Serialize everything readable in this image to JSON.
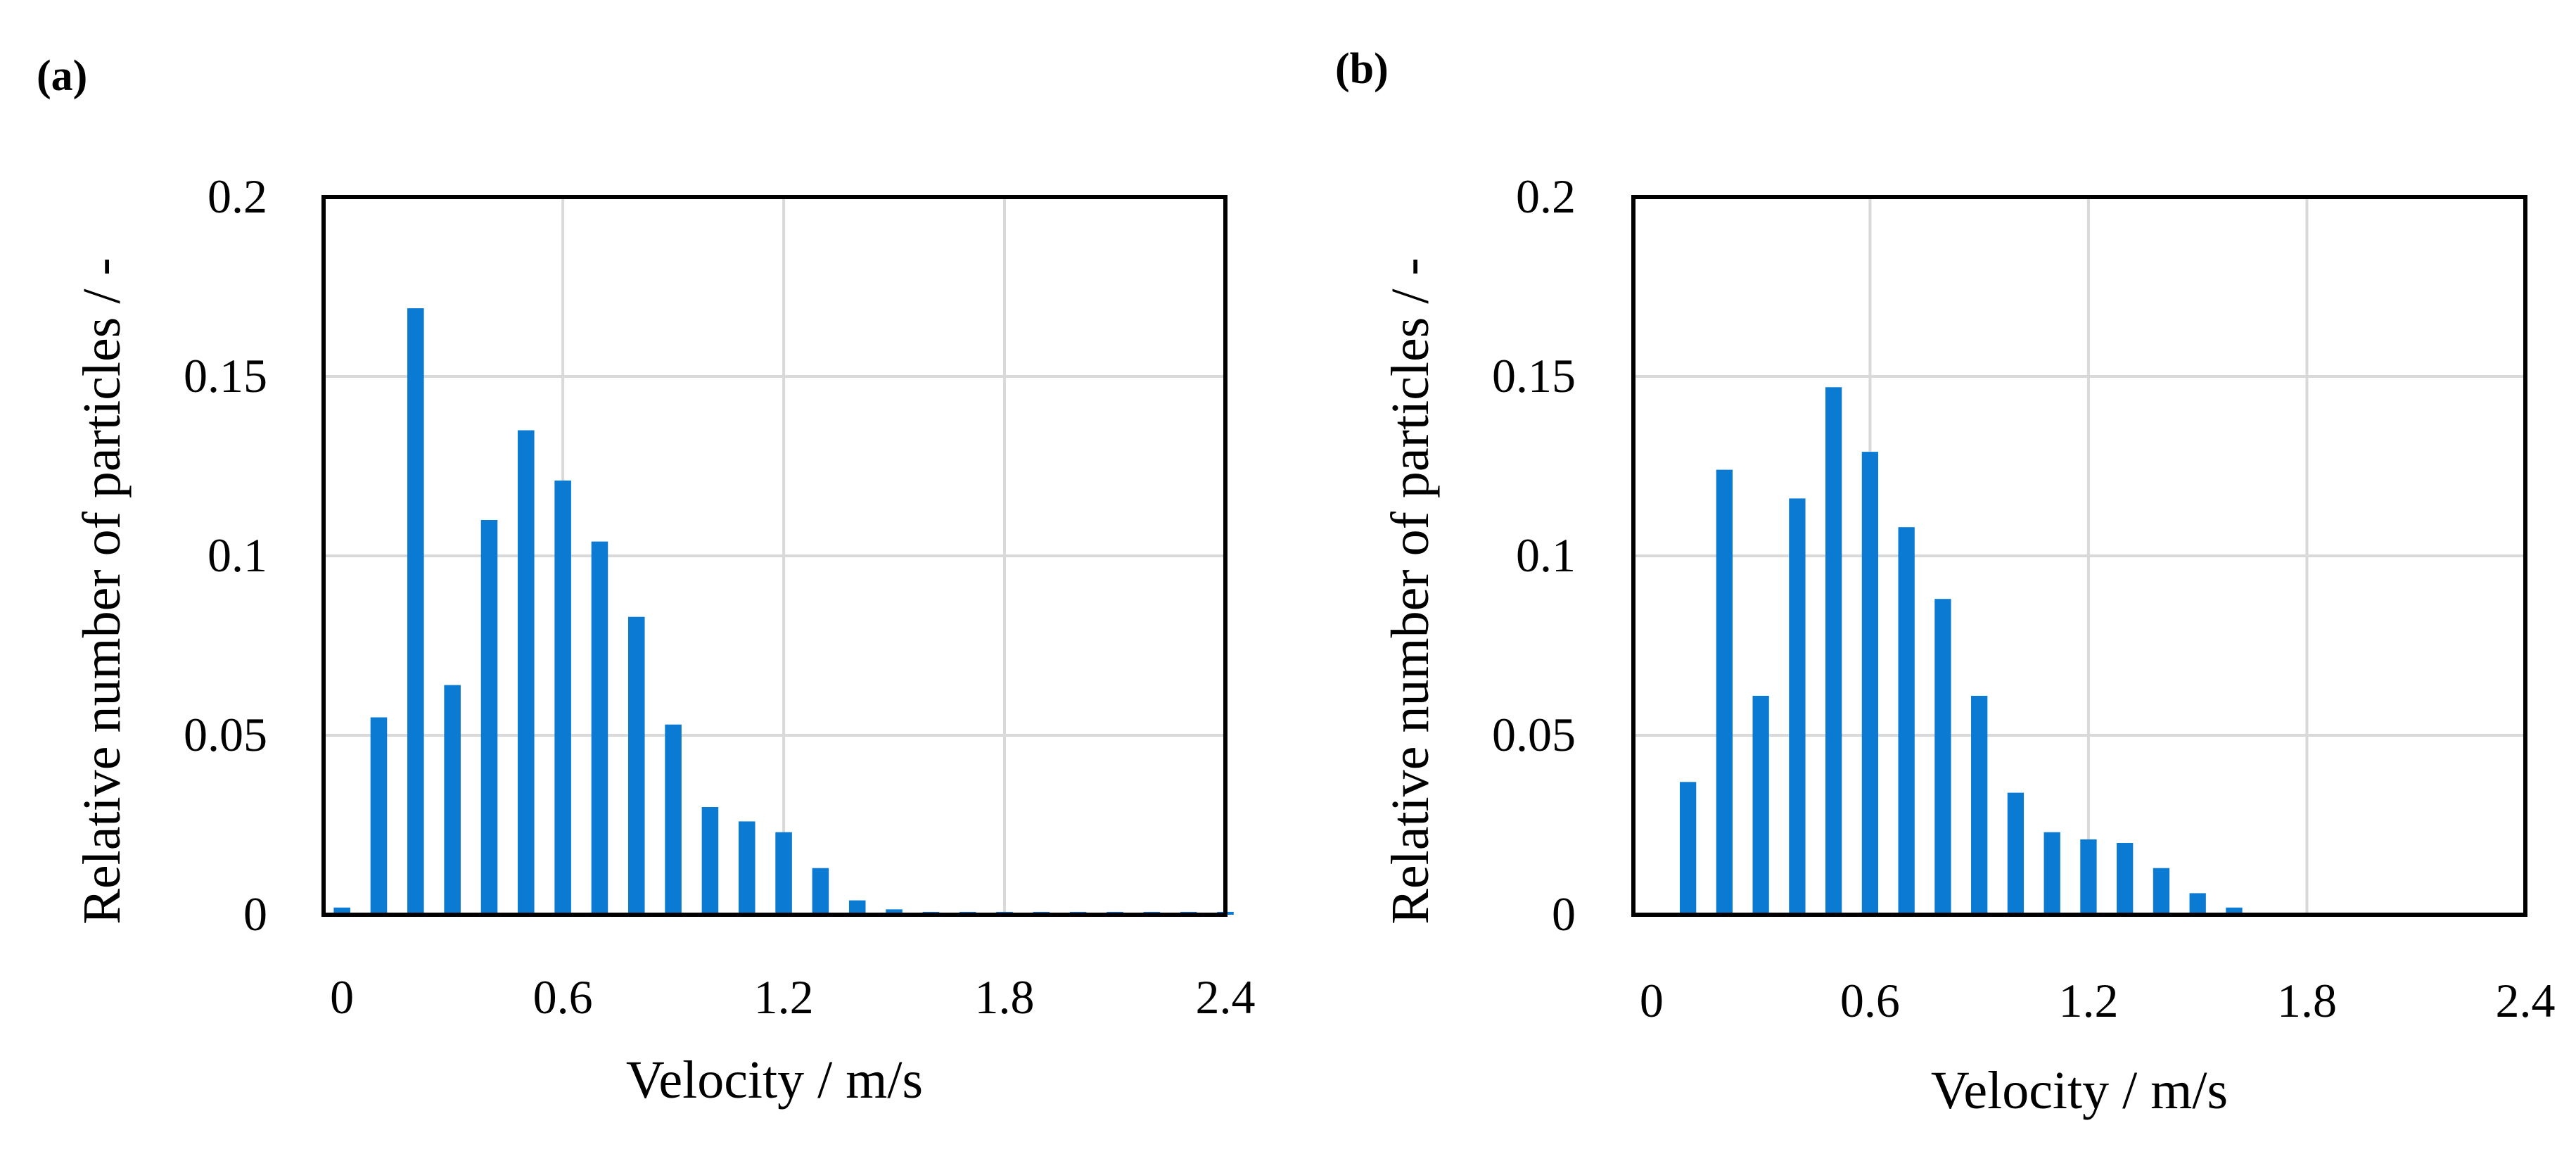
{
  "colors": {
    "bar": "#0A7AD2",
    "grid": "#D9D9D9",
    "frame": "#000000",
    "background": "#FFFFFF"
  },
  "chart_data": [
    {
      "type": "bar",
      "panel_label": "(a)",
      "title": "",
      "xlabel": "Velocity / m/s",
      "ylabel": "Relative number of particles / -",
      "xlim": [
        -0.05,
        2.4
      ],
      "ylim": [
        0,
        0.2
      ],
      "x_ticks": [
        0,
        0.6,
        1.2,
        1.8,
        2.4
      ],
      "x_tick_labels": [
        "0",
        "0.6",
        "1.2",
        "1.8",
        "2.4"
      ],
      "y_ticks": [
        0,
        0.05,
        0.1,
        0.15,
        0.2
      ],
      "y_tick_labels": [
        "0",
        "0.05",
        "0.1",
        "0.15",
        "0.2"
      ],
      "grid": {
        "x": true,
        "y": true
      },
      "legend": null,
      "bar_width": 0.045,
      "x": [
        0,
        0.1,
        0.2,
        0.3,
        0.4,
        0.5,
        0.6,
        0.7,
        0.8,
        0.9,
        1.0,
        1.1,
        1.2,
        1.3,
        1.4,
        1.5,
        1.6,
        1.7,
        1.8,
        1.9,
        2.0,
        2.1,
        2.2,
        2.3,
        2.4
      ],
      "values": [
        0.002,
        0.055,
        0.169,
        0.064,
        0.11,
        0.135,
        0.121,
        0.104,
        0.083,
        0.053,
        0.03,
        0.026,
        0.023,
        0.013,
        0.004,
        0.0015,
        0.0008,
        0.0008,
        0.0008,
        0.0008,
        0.0008,
        0.0008,
        0.0008,
        0.0008,
        0.0008
      ]
    },
    {
      "type": "bar",
      "panel_label": "(b)",
      "title": "",
      "xlabel": "Velocity / m/s",
      "ylabel": "Relative number of particles / -",
      "xlim": [
        -0.05,
        2.4
      ],
      "ylim": [
        0,
        0.2
      ],
      "x_ticks": [
        0,
        0.6,
        1.2,
        1.8,
        2.4
      ],
      "x_tick_labels": [
        "0",
        "0.6",
        "1.2",
        "1.8",
        "2.4"
      ],
      "y_ticks": [
        0,
        0.05,
        0.1,
        0.15,
        0.2
      ],
      "y_tick_labels": [
        "0",
        "0.05",
        "0.1",
        "0.15",
        "0.2"
      ],
      "grid": {
        "x": true,
        "y": true
      },
      "legend": null,
      "bar_width": 0.045,
      "x": [
        0.1,
        0.2,
        0.3,
        0.4,
        0.5,
        0.6,
        0.7,
        0.8,
        0.9,
        1.0,
        1.1,
        1.2,
        1.3,
        1.4,
        1.5,
        1.6
      ],
      "values": [
        0.037,
        0.124,
        0.061,
        0.116,
        0.147,
        0.129,
        0.108,
        0.088,
        0.061,
        0.034,
        0.023,
        0.021,
        0.02,
        0.013,
        0.006,
        0.002
      ]
    }
  ]
}
